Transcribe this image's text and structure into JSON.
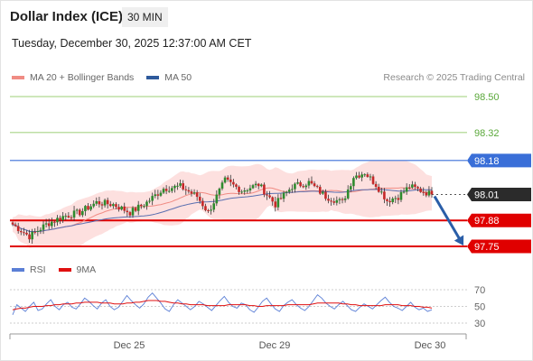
{
  "header": {
    "title": "Dollar Index (ICE)",
    "timeframe": "30 MIN",
    "datetime": "Tuesday, December 30, 2025 12:37:00 AM CET"
  },
  "legend": {
    "items": [
      {
        "label": "MA 20 + Bollinger Bands",
        "color": "#f08c84"
      },
      {
        "label": "MA 50",
        "color": "#2e5a9c"
      }
    ],
    "attribution": "Research © 2025 Trading Central"
  },
  "indicator_legend": {
    "items": [
      {
        "label": "RSI",
        "color": "#5b7fd6"
      },
      {
        "label": "9MA",
        "color": "#e01010"
      }
    ]
  },
  "colors": {
    "up_candle": "#2e8b2e",
    "down_candle": "#c62828",
    "target_line": "#7cbf4a",
    "pivot_line": "#3a6fd8",
    "support_line": "#e00000",
    "current_price_bg": "#2b2b2b",
    "band_fill": "#fde0df",
    "arrow": "#2a5ea8"
  },
  "chart_data": [
    {
      "type": "candlestick",
      "title": "Dollar Index (ICE)",
      "timeframe": "30 MIN",
      "ylim": [
        97.72,
        98.57
      ],
      "x_ticks": [
        "Dec 25",
        "Dec 29",
        "Dec 30"
      ],
      "levels": [
        {
          "value": 98.5,
          "label": "98.50",
          "kind": "target"
        },
        {
          "value": 98.32,
          "label": "98.32",
          "kind": "target"
        },
        {
          "value": 98.18,
          "label": "98.18",
          "kind": "pivot"
        },
        {
          "value": 98.01,
          "label": "98.01",
          "kind": "current"
        },
        {
          "value": 97.88,
          "label": "97.88",
          "kind": "support"
        },
        {
          "value": 97.75,
          "label": "97.75",
          "kind": "support"
        }
      ],
      "current_price": 98.01,
      "arrow": {
        "from": 98.01,
        "to": 97.75,
        "direction": "down"
      },
      "series": [
        {
          "name": "MA 20 + Bollinger Bands"
        },
        {
          "name": "MA 50"
        }
      ],
      "waypoints": [
        [
          0,
          97.86
        ],
        [
          6,
          97.8
        ],
        [
          12,
          97.86
        ],
        [
          18,
          97.9
        ],
        [
          24,
          97.92
        ],
        [
          30,
          97.97
        ],
        [
          36,
          97.96
        ],
        [
          42,
          97.92
        ],
        [
          48,
          97.97
        ],
        [
          54,
          98.04
        ],
        [
          60,
          98.05
        ],
        [
          66,
          98.0
        ],
        [
          70,
          97.92
        ],
        [
          76,
          98.08
        ],
        [
          82,
          98.03
        ],
        [
          88,
          98.06
        ],
        [
          94,
          97.96
        ],
        [
          100,
          98.05
        ],
        [
          106,
          98.07
        ],
        [
          112,
          98.0
        ],
        [
          118,
          97.97
        ],
        [
          122,
          98.1
        ],
        [
          126,
          98.12
        ],
        [
          130,
          98.06
        ],
        [
          134,
          97.98
        ],
        [
          138,
          98.0
        ],
        [
          142,
          98.05
        ],
        [
          146,
          98.03
        ],
        [
          150,
          98.01
        ]
      ]
    },
    {
      "type": "line",
      "name": "RSI panel",
      "ylim": [
        20,
        80
      ],
      "y_ticks": [
        70,
        50,
        30
      ],
      "series": [
        {
          "name": "RSI"
        },
        {
          "name": "9MA"
        }
      ],
      "rsi": [
        40,
        52,
        48,
        44,
        50,
        55,
        45,
        47,
        53,
        58,
        50,
        46,
        52,
        55,
        49,
        47,
        53,
        60,
        56,
        51,
        47,
        54,
        58,
        50,
        46,
        49,
        56,
        63,
        57,
        52,
        48,
        53,
        61,
        66,
        60,
        54,
        47,
        44,
        52,
        58,
        54,
        50,
        46,
        50,
        56,
        53,
        49,
        45,
        51,
        57,
        62,
        55,
        50,
        48,
        54,
        52,
        46,
        43,
        49,
        56,
        60,
        53,
        47,
        44,
        51,
        55,
        58,
        52,
        48,
        45,
        50,
        57,
        64,
        60,
        54,
        50,
        47,
        52,
        56,
        51,
        46,
        44,
        49,
        53,
        50,
        47,
        52,
        57,
        61,
        55,
        50,
        48,
        45,
        50,
        55,
        49,
        46,
        48,
        44,
        46
      ],
      "ma9": [
        46,
        47,
        48,
        48,
        49,
        50,
        50,
        50,
        51,
        51,
        52,
        52,
        53,
        53,
        53,
        54,
        54,
        55,
        55,
        55,
        55,
        54,
        54,
        54,
        53,
        53,
        53,
        54,
        54,
        55,
        55,
        56,
        57,
        57,
        57,
        56,
        56,
        55,
        54,
        54,
        53,
        53,
        52,
        52,
        52,
        52,
        51,
        51,
        51,
        51,
        51,
        52,
        52,
        52,
        52,
        52,
        51,
        51,
        50,
        50,
        51,
        51,
        51,
        51,
        51,
        52,
        52,
        52,
        52,
        52,
        52,
        53,
        54,
        54,
        54,
        54,
        54,
        54,
        53,
        53,
        52,
        52,
        51,
        51,
        51,
        51,
        51,
        51,
        52,
        52,
        52,
        52,
        51,
        51,
        51,
        50,
        50,
        49,
        49,
        48
      ]
    }
  ]
}
